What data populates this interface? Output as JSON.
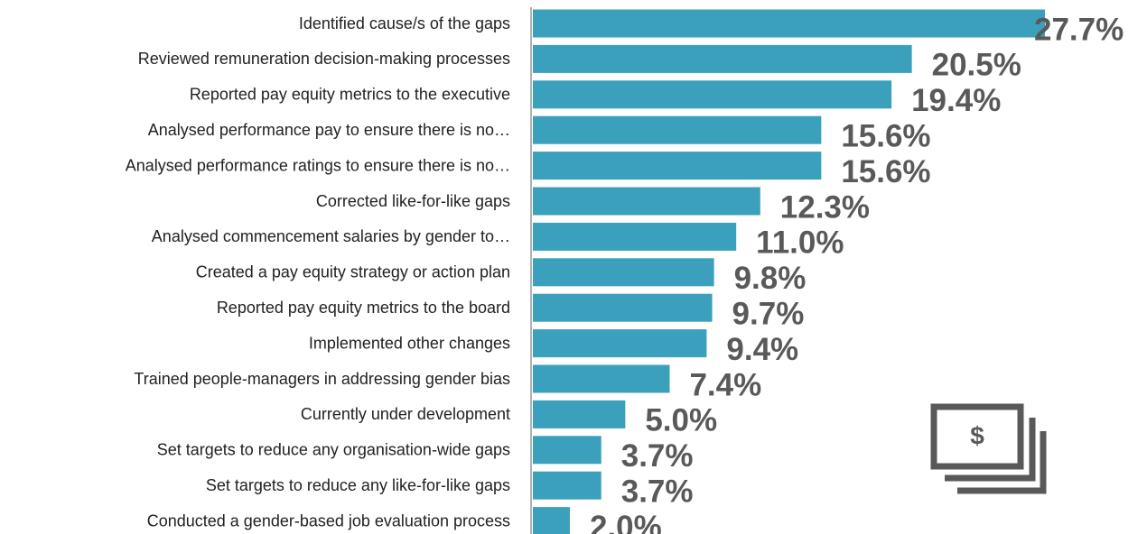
{
  "chart_data": {
    "type": "bar",
    "orientation": "horizontal",
    "categories": [
      "Identified cause/s of the gaps",
      "Reviewed remuneration decision-making processes",
      "Reported pay equity metrics to the executive",
      "Analysed performance pay to ensure there is no…",
      "Analysed performance ratings to ensure there is no…",
      "Corrected like-for-like gaps",
      "Analysed commencement salaries by gender to…",
      "Created a pay equity strategy or action plan",
      "Reported pay equity metrics to the board",
      "Implemented other changes",
      "Trained people-managers in addressing gender bias",
      "Currently under development",
      "Set targets to reduce any organisation-wide gaps",
      "Set targets to reduce any like-for-like gaps",
      "Conducted a gender-based job evaluation process"
    ],
    "values": [
      27.7,
      20.5,
      19.4,
      15.6,
      15.6,
      12.3,
      11.0,
      9.8,
      9.7,
      9.4,
      7.4,
      5.0,
      3.7,
      3.7,
      2.0
    ],
    "value_labels": [
      "27.7%",
      "20.5%",
      "19.4%",
      "15.6%",
      "15.6%",
      "12.3%",
      "11.0%",
      "9.8%",
      "9.7%",
      "9.4%",
      "7.4%",
      "5.0%",
      "3.7%",
      "3.7%",
      "2.0%"
    ],
    "color": "#3aa0bb"
  }
}
